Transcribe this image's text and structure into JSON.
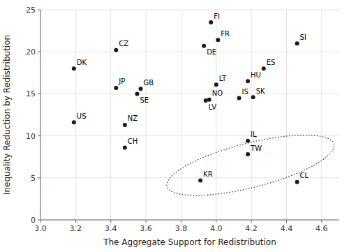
{
  "chart_data": {
    "type": "scatter",
    "xlabel": "The Aggregate Support for Redistribution",
    "ylabel": "Inequality Reduction by Redistribution",
    "labels": [
      "DK",
      "US",
      "CZ",
      "JP",
      "NZ",
      "CH",
      "GB",
      "SE",
      "FI",
      "DE",
      "FR",
      "NO",
      "LV",
      "LT",
      "IS",
      "SK",
      "HU",
      "ES",
      "SI",
      "IL",
      "TW",
      "KR",
      "CL"
    ],
    "x": [
      3.19,
      3.19,
      3.43,
      3.43,
      3.48,
      3.48,
      3.57,
      3.55,
      3.97,
      3.93,
      4.01,
      3.96,
      3.94,
      4.0,
      4.13,
      4.21,
      4.18,
      4.27,
      4.46,
      4.18,
      4.18,
      3.91,
      4.46
    ],
    "values": [
      18.0,
      11.6,
      20.2,
      15.7,
      11.3,
      8.6,
      15.6,
      15.0,
      23.5,
      20.7,
      21.4,
      14.3,
      14.2,
      16.1,
      14.5,
      14.6,
      16.5,
      18.0,
      21.0,
      9.4,
      7.8,
      4.7,
      4.5
    ],
    "color": "#1a1a1a",
    "xlim": [
      3.0,
      4.7
    ],
    "ylim": [
      0,
      25
    ],
    "xticks": [
      {
        "value": 3.0,
        "label": "3.0"
      },
      3.2,
      3.4,
      3.6,
      3.8,
      {
        "value": 4.0,
        "label": "4.0"
      },
      4.2,
      4.4,
      4.6
    ],
    "yticks": [
      0,
      5,
      10,
      15,
      20,
      25
    ],
    "grid": true,
    "ellipse": {
      "center_x": 4.195,
      "center_y": 6.5,
      "width": 0.72,
      "height": 7.2,
      "angle": -5
    }
  }
}
